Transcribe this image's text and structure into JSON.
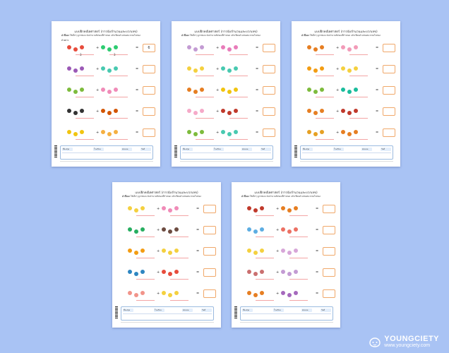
{
  "brand": {
    "name": "YOUNGCIETY",
    "url": "www.youngciety.com"
  },
  "sheet_title": "แบบฝึกคณิตศาสตร์ (การนับจำนวนและบวกเลข)",
  "instruction_label": "คำชี้แจง",
  "instruction_text": "ให้เด็กๆ ดูภาพและนับจำนวนสิ่งของที่กำหนด แล้วเขียนตัวเลขผลบวกลงในช่อง",
  "example_label": "ตัวอย่าง",
  "example": {
    "a": "3",
    "b": "3",
    "answer": "6"
  },
  "footer_labels": [
    "ชื่อ-สกุล",
    "โรงเรียน",
    "คะแนน",
    "วันที่"
  ],
  "sheets": [
    {
      "id": "sheet-1",
      "rows": [
        [
          "#e74c3c",
          "#2ecc71"
        ],
        [
          "#9b59b6",
          "#48c9b0"
        ],
        [
          "#7dbb3c",
          "#f08bb8"
        ],
        [
          "#333333",
          "#d35400"
        ],
        [
          "#f1c40f",
          "#f5b041"
        ]
      ]
    },
    {
      "id": "sheet-2",
      "rows": [
        [
          "#c39bd3",
          "#e87cba"
        ],
        [
          "#f4d03f",
          "#48c9b0"
        ],
        [
          "#e67e22",
          "#f1c40f"
        ],
        [
          "#f5a9c8",
          "#c0392b"
        ],
        [
          "#7dbb3c",
          "#48c9b0"
        ]
      ]
    },
    {
      "id": "sheet-3",
      "rows": [
        [
          "#e67e22",
          "#f29bb8"
        ],
        [
          "#f39c12",
          "#f4d03f"
        ],
        [
          "#7dbb3c",
          "#1abc9c"
        ],
        [
          "#e67e22",
          "#c0392b"
        ],
        [
          "#e6a023",
          "#e67e22"
        ]
      ]
    },
    {
      "id": "sheet-4",
      "rows": [
        [
          "#f4d03f",
          "#f08bb8"
        ],
        [
          "#27ae60",
          "#6d4c41"
        ],
        [
          "#f39c12",
          "#f4d03f"
        ],
        [
          "#2e86c1",
          "#e74c3c"
        ],
        [
          "#f1948a",
          "#f4d03f"
        ]
      ]
    },
    {
      "id": "sheet-5",
      "rows": [
        [
          "#c0392b",
          "#e67e22"
        ],
        [
          "#5dade2",
          "#ec7063"
        ],
        [
          "#f4d03f",
          "#d7a6d8"
        ],
        [
          "#ca6f6f",
          "#c39bd3"
        ],
        [
          "#e67e22",
          "#a569bd"
        ]
      ]
    }
  ]
}
